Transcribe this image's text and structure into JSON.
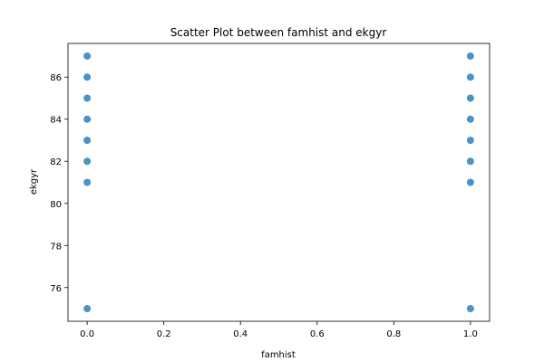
{
  "chart_data": {
    "type": "scatter",
    "title": "Scatter Plot between famhist and ekgyr",
    "xlabel": "famhist",
    "ylabel": "ekgyr",
    "xlim": [
      -0.05,
      1.05
    ],
    "ylim": [
      74.4,
      87.6
    ],
    "xticks": [
      0.0,
      0.2,
      0.4,
      0.6,
      0.8,
      1.0
    ],
    "xtick_labels": [
      "0.0",
      "0.2",
      "0.4",
      "0.6",
      "0.8",
      "1.0"
    ],
    "yticks": [
      76,
      78,
      80,
      82,
      84,
      86
    ],
    "ytick_labels": [
      "76",
      "78",
      "80",
      "82",
      "84",
      "86"
    ],
    "grid": false,
    "marker_color": "#1f77b4",
    "points": [
      {
        "x": 0,
        "y": 87
      },
      {
        "x": 0,
        "y": 86
      },
      {
        "x": 0,
        "y": 85
      },
      {
        "x": 0,
        "y": 84
      },
      {
        "x": 0,
        "y": 83
      },
      {
        "x": 0,
        "y": 82
      },
      {
        "x": 0,
        "y": 81
      },
      {
        "x": 0,
        "y": 75
      },
      {
        "x": 1,
        "y": 87
      },
      {
        "x": 1,
        "y": 86
      },
      {
        "x": 1,
        "y": 85
      },
      {
        "x": 1,
        "y": 84
      },
      {
        "x": 1,
        "y": 83
      },
      {
        "x": 1,
        "y": 82
      },
      {
        "x": 1,
        "y": 81
      },
      {
        "x": 1,
        "y": 75
      }
    ]
  }
}
